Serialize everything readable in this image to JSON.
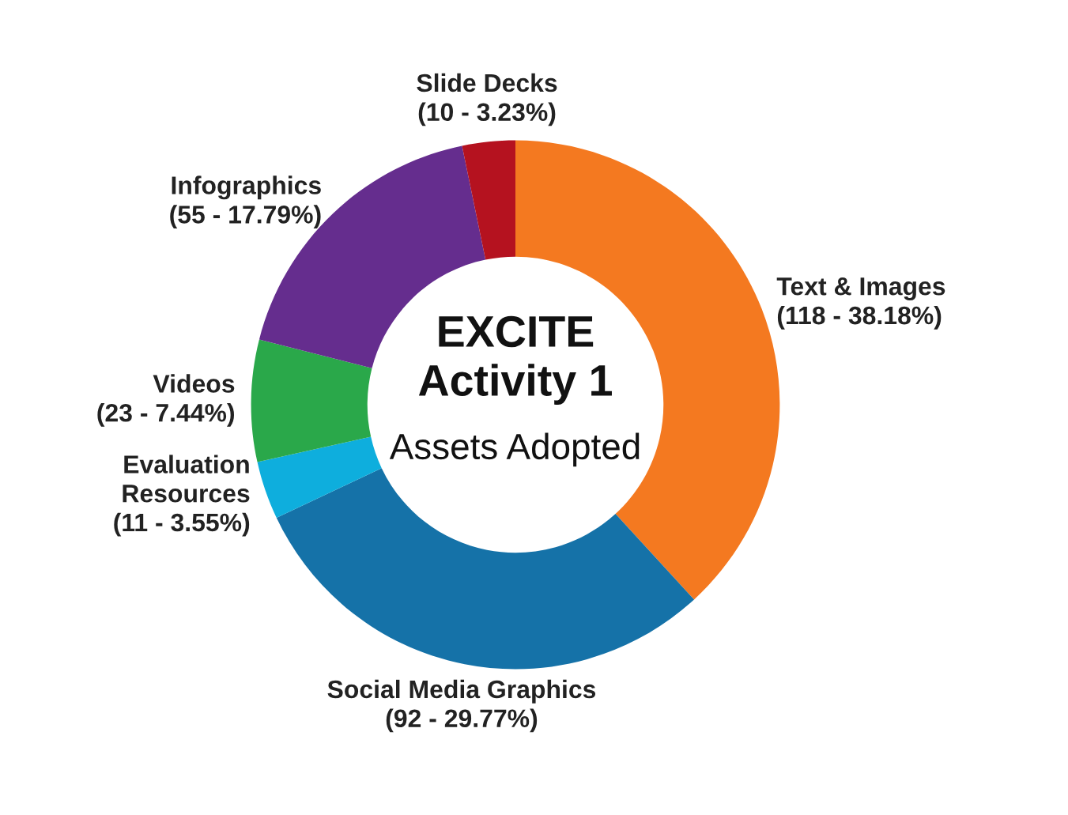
{
  "chart_data": {
    "type": "donut",
    "title": "EXCITE\nActivity 1",
    "subtitle": "Assets Adopted",
    "categories": [
      "Text & Images",
      "Social Media Graphics",
      "Evaluation\nResources",
      "Videos",
      "Infographics",
      "Slide Decks"
    ],
    "values": [
      118,
      92,
      11,
      23,
      55,
      10
    ],
    "value_labels": [
      "(118 - 38.18%)",
      "(92 - 29.77%)",
      "(11 - 3.55%)",
      "(23 - 7.44%)",
      "(55 - 17.79%)",
      "(10 - 3.23%)"
    ],
    "colors": [
      "#f47920",
      "#1572a8",
      "#0eaedd",
      "#2aa84a",
      "#652d8e",
      "#b5121f"
    ]
  }
}
